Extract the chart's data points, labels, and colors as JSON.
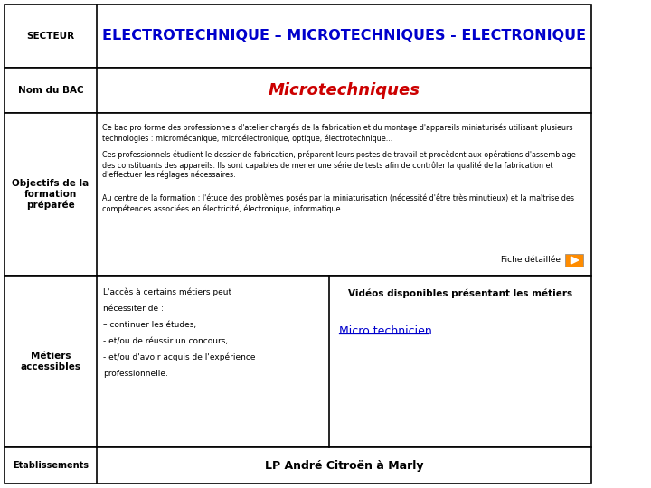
{
  "title": "ELECTROTECHNIQUE – MICROTECHNIQUES - ELECTRONIQUE",
  "title_color": "#0000CC",
  "bac_label": "Nom du BAC",
  "bac_name": "Microtechniques",
  "bac_name_color": "#CC0000",
  "objectifs_label_clean": "Objectifs de la\nformation\npréparée",
  "secteur_label": "SECTEUR",
  "metiers_label": "Métiers\naccessibles",
  "etablissements_label": "Etablissements",
  "para1": "Ce bac pro forme des professionnels d'atelier chargés de la fabrication et du montage d'appareils miniaturisés utilisant plusieurs\ntechnologies : micromécanique, microélectronique, optique, électrotechnique...",
  "para2": "Ces professionnels étudient le dossier de fabrication, préparent leurs postes de travail et procèdent aux opérations d'assemblage\ndes constituants des appareils. Ils sont capables de mener une série de tests afin de contrôler la qualité de la fabrication et\nd'effectuer les réglages nécessaires.",
  "para3": "Au centre de la formation : l'étude des problèmes posés par la miniaturisation (nécessité d'être très minutieux) et la maîtrise des\ncompétences associées en électricité, électronique, informatique.",
  "fiche_label": "Fiche détaillée",
  "metiers_left_lines": [
    "L'accès à certains métiers peut",
    "nécessiter de :",
    "– continuer les études,",
    "- et/ou de réussir un concours,",
    "- et/ou d'avoir acquis de l'expérience",
    "professionnelle."
  ],
  "videos_title": "Vidéos disponibles présentant les métiers",
  "video_link": "Micro technicien",
  "etablissements_text": "LP André Citroën à Marly",
  "bg_color": "#FFFFFF",
  "border_color": "#000000",
  "arrow_color": "#FF8C00"
}
